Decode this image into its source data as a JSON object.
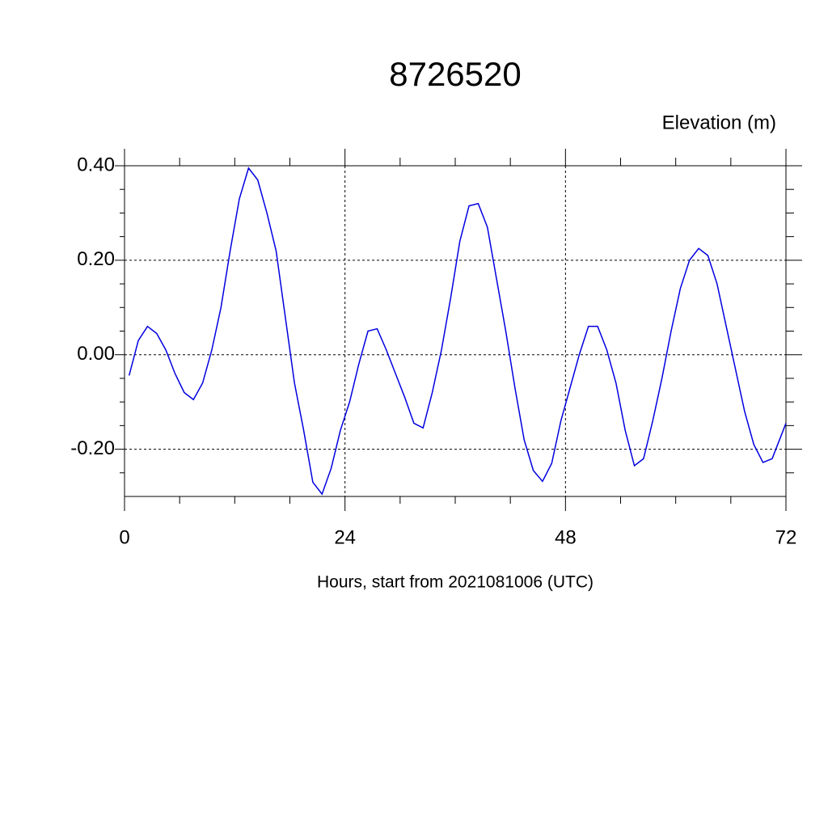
{
  "chart_data": {
    "type": "line",
    "title": "8726520",
    "subtitle": "Elevation (m)",
    "x_label": "Hours, start from 2021081006 (UTC)",
    "xlim": [
      0,
      72
    ],
    "ylim": [
      -0.3,
      0.4
    ],
    "xticks": [
      0,
      24,
      48,
      72
    ],
    "xminorticks": [
      6,
      12,
      18,
      30,
      36,
      42,
      54,
      60,
      66
    ],
    "yticks": [
      {
        "value": 0.4,
        "label": "0.40"
      },
      {
        "value": 0.2,
        "label": "0.20"
      },
      {
        "value": 0,
        "label": "0.00"
      },
      {
        "value": -0.2,
        "label": "-0.20"
      }
    ],
    "yminorticks": [
      -0.25,
      -0.15,
      -0.1,
      -0.05,
      0.05,
      0.1,
      0.15,
      0.25,
      0.3,
      0.35
    ],
    "grid": true,
    "x": [
      0.5,
      1.5,
      2.5,
      3.5,
      4.5,
      5.5,
      6.5,
      7.5,
      8.5,
      9.5,
      10.5,
      11.5,
      12.5,
      13.5,
      14.5,
      15.5,
      16.5,
      17.5,
      18.5,
      19.5,
      20.5,
      21.5,
      22.5,
      23.5,
      24.5,
      25.5,
      26.5,
      27.5,
      28.5,
      29.5,
      30.5,
      31.5,
      32.5,
      33.5,
      34.5,
      35.5,
      36.5,
      37.5,
      38.5,
      39.5,
      40.5,
      41.5,
      42.5,
      43.5,
      44.5,
      45.5,
      46.5,
      47.5,
      48.5,
      49.5,
      50.5,
      51.5,
      52.5,
      53.5,
      54.5,
      55.5,
      56.5,
      57.5,
      58.5,
      59.5,
      60.5,
      61.5,
      62.5,
      63.5,
      64.5,
      65.5,
      66.5,
      67.5,
      68.5,
      69.5,
      70.5,
      71.5,
      72
    ],
    "series": [
      {
        "color": "#0000e0",
        "values": [
          -0.044,
          0.03,
          0.06,
          0.045,
          0.01,
          -0.04,
          -0.08,
          -0.095,
          -0.06,
          0.01,
          0.1,
          0.22,
          0.33,
          0.395,
          0.37,
          0.3,
          0.22,
          0.08,
          -0.06,
          -0.16,
          -0.27,
          -0.295,
          -0.24,
          -0.16,
          -0.1,
          -0.02,
          0.05,
          0.055,
          0.01,
          -0.04,
          -0.09,
          -0.145,
          -0.155,
          -0.08,
          0.01,
          0.12,
          0.24,
          0.315,
          0.32,
          0.27,
          0.16,
          0.05,
          -0.07,
          -0.18,
          -0.245,
          -0.268,
          -0.23,
          -0.14,
          -0.07,
          0.0,
          0.06,
          0.06,
          0.01,
          -0.06,
          -0.16,
          -0.235,
          -0.22,
          -0.14,
          -0.05,
          0.05,
          0.14,
          0.2,
          0.225,
          0.21,
          0.15,
          0.06,
          -0.03,
          -0.12,
          -0.19,
          -0.228,
          -0.22,
          -0.17,
          -0.145
        ]
      }
    ]
  }
}
